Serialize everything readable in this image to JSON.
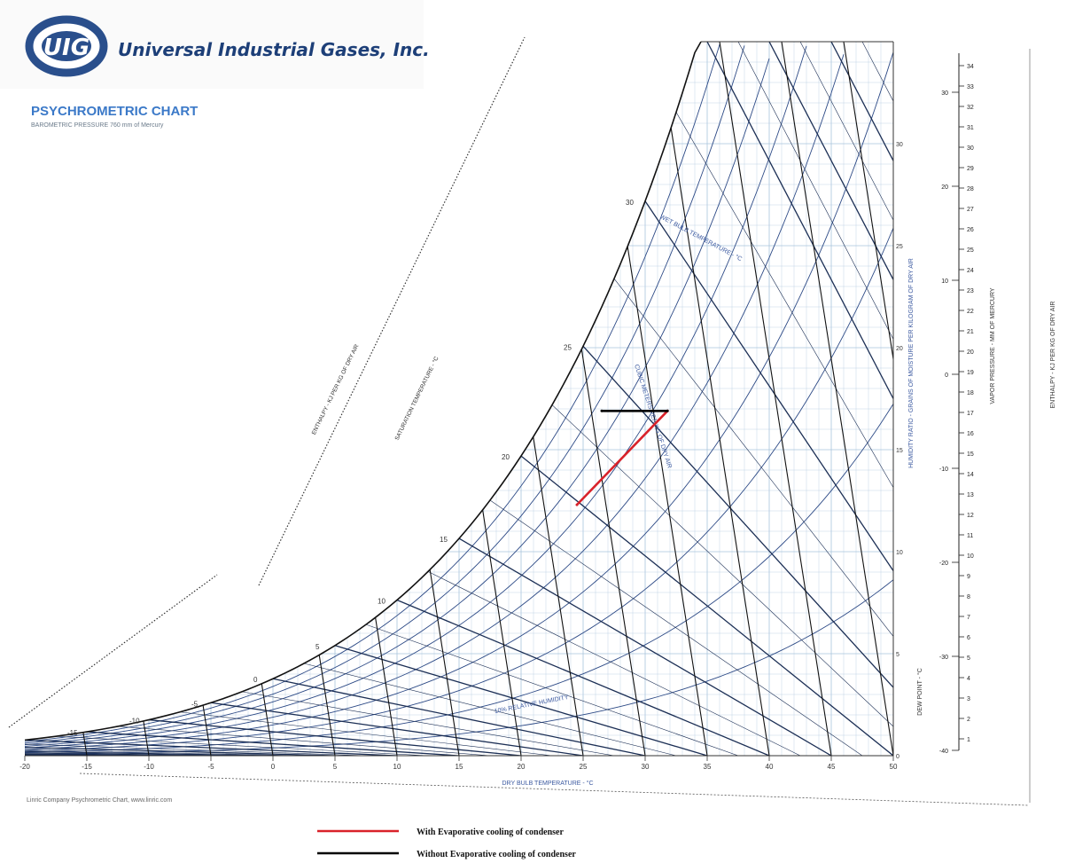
{
  "brand": {
    "logo_text": "UIG",
    "company": "Universal Industrial Gases, Inc.",
    "brand_color": "#2a4f8c",
    "accent": "#3b79c8"
  },
  "header": {
    "title": "PSYCHROMETRIC CHART",
    "subtitle": "BAROMETRIC PRESSURE 760 mm of Mercury"
  },
  "footer": {
    "credit": "Linric Company Psychrometric Chart, www.linric.com"
  },
  "chart_data": {
    "type": "line",
    "title": "PSYCHROMETRIC CHART",
    "xlabel": "DRY BULB TEMPERATURE - °C",
    "ylabel": "HUMIDITY RATIO - GRAINS OF MOISTURE PER KILOGRAM OF DRY AIR",
    "xlim": [
      -20,
      50
    ],
    "ylim": [
      0,
      35
    ],
    "x_ticks": [
      -20,
      -15,
      -10,
      -5,
      0,
      5,
      10,
      15,
      20,
      25,
      30,
      35,
      40,
      45,
      50
    ],
    "y_ticks": [
      0,
      5,
      10,
      15,
      20,
      25,
      30
    ],
    "vapor_pressure_label": "VAPOR PRESSURE - MM OF MERCURY",
    "vapor_pressure_ticks": [
      1,
      2,
      3,
      4,
      5,
      6,
      7,
      8,
      9,
      10,
      11,
      12,
      13,
      14,
      15,
      16,
      17,
      18,
      19,
      20,
      21,
      22,
      23,
      24,
      25,
      26,
      27,
      28,
      29,
      30,
      31,
      32,
      33,
      34
    ],
    "dew_point_label": "DEW POINT - °C",
    "dew_point_ticks": [
      -40,
      -30,
      -20,
      -10,
      0,
      10,
      20,
      30
    ],
    "enthalpy_label": "ENTHALPY - KJ PER KG OF DRY AIR",
    "saturation_label": "SATURATION TEMPERATURE - °C",
    "saturation_ticks": [
      -15,
      -10,
      -5,
      0,
      5,
      10,
      15,
      20,
      25,
      30
    ],
    "wet_bulb_label": "WET BULB TEMPERATURE - °C",
    "volume_label": "CUBIC METERS PER KG OF DRY AIR",
    "rh_label": "10% RELATIVE HUMIDITY",
    "series": [
      {
        "name": "With Evaporative cooling of condenser",
        "color": "#d9222a",
        "points": [
          [
            24.5,
            12.3
          ],
          [
            31.8,
            16.9
          ]
        ]
      },
      {
        "name": "Without Evaporative cooling of condenser",
        "color": "#000000",
        "points": [
          [
            26.5,
            16.9
          ],
          [
            31.8,
            16.9
          ]
        ]
      }
    ],
    "legend_position": "bottom-center",
    "grid": true
  }
}
